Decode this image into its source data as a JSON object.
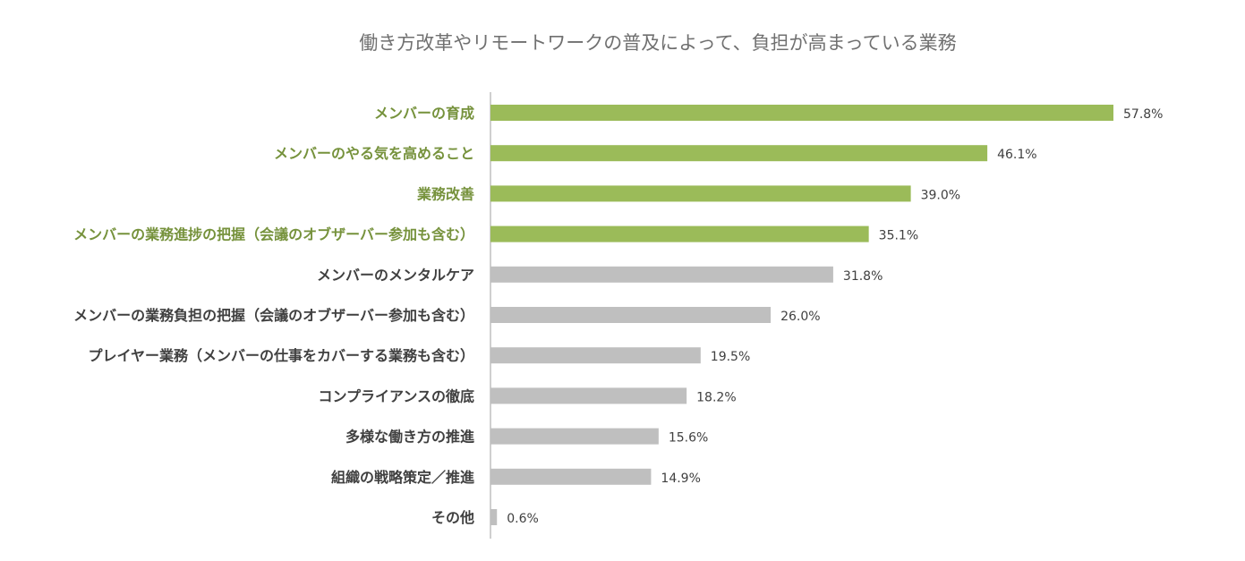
{
  "colors": {
    "highlight_bar": "#9bbb59",
    "highlight_label": "#76923c",
    "normal_bar": "#bfbfbf",
    "normal_label": "#404040",
    "axis": "#bfbfbf"
  },
  "chart_data": {
    "type": "bar",
    "orientation": "horizontal",
    "title": "働き方改革やリモートワークの普及によって、負担が高まっている業務",
    "xlabel": "",
    "ylabel": "",
    "xlim": [
      0,
      60
    ],
    "grid": false,
    "legend": "none",
    "value_suffix": "%",
    "categories": [
      "メンバーの育成",
      "メンバーのやる気を高めること",
      "業務改善",
      "メンバーの業務進捗の把握（会議のオブザーバー参加も含む）",
      "メンバーのメンタルケア",
      "メンバーの業務負担の把握（会議のオブザーバー参加も含む）",
      "プレイヤー業務（メンバーの仕事をカバーする業務も含む）",
      "コンプライアンスの徹底",
      "多様な働き方の推進",
      "組織の戦略策定／推進",
      "その他"
    ],
    "values": [
      57.8,
      46.1,
      39.0,
      35.1,
      31.8,
      26.0,
      19.5,
      18.2,
      15.6,
      14.9,
      0.6
    ],
    "data_labels": [
      "57.8%",
      "46.1%",
      "39.0%",
      "35.1%",
      "31.8%",
      "26.0%",
      "19.5%",
      "18.2%",
      "15.6%",
      "14.9%",
      "0.6%"
    ],
    "highlighted": [
      true,
      true,
      true,
      true,
      false,
      false,
      false,
      false,
      false,
      false,
      false
    ]
  }
}
